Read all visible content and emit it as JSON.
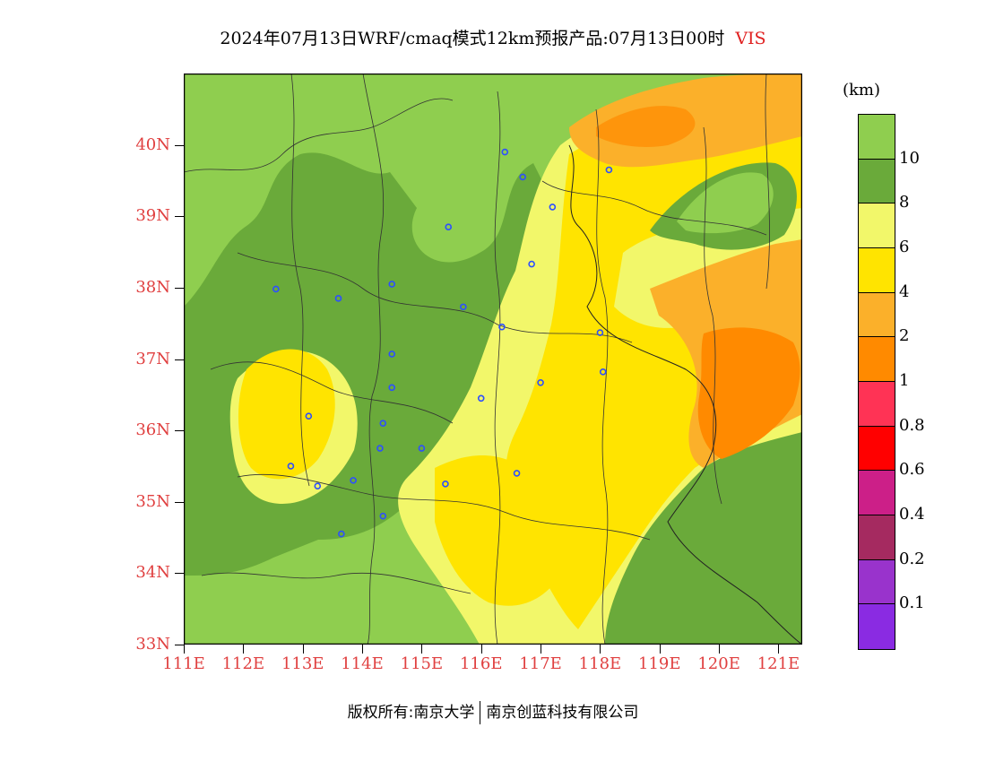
{
  "title": {
    "text": "2024年07月13日WRF/cmaq模式12km预报产品:07月13日00时",
    "variable": "VIS"
  },
  "legend": {
    "unit": "(km)",
    "boxes": [
      {
        "color": "#8fce4f"
      },
      {
        "color": "#6aaa3a"
      },
      {
        "color": "#f2f76a"
      },
      {
        "color": "#ffe400"
      },
      {
        "color": "#fbb02a"
      },
      {
        "color": "#ff8a00"
      },
      {
        "color": "#ff3355"
      },
      {
        "color": "#ff0000"
      },
      {
        "color": "#cc1f88"
      },
      {
        "color": "#a52a60"
      },
      {
        "color": "#9933cc"
      },
      {
        "color": "#8a2be2"
      }
    ],
    "labels": [
      "10",
      "8",
      "6",
      "4",
      "2",
      "1",
      "0.8",
      "0.6",
      "0.4",
      "0.2",
      "0.1"
    ]
  },
  "axes": {
    "lat_labels": [
      "40N",
      "39N",
      "38N",
      "37N",
      "36N",
      "35N",
      "34N",
      "33N"
    ],
    "lon_labels": [
      "111E",
      "112E",
      "113E",
      "114E",
      "115E",
      "116E",
      "117E",
      "118E",
      "119E",
      "120E",
      "121E"
    ],
    "lat_range": [
      33,
      41
    ],
    "lon_range": [
      111,
      121.4
    ]
  },
  "colors": {
    "green": "#8fce4f",
    "dark_green": "#6aaa3a",
    "light_yellow": "#f2f76a",
    "yellow": "#ffe400",
    "light_orange": "#fbb02a",
    "orange": "#ff8a00",
    "station": "#2d4fff"
  },
  "stations": [
    {
      "lon": 116.4,
      "lat": 39.9
    },
    {
      "lon": 116.7,
      "lat": 39.55
    },
    {
      "lon": 118.15,
      "lat": 39.65
    },
    {
      "lon": 117.2,
      "lat": 39.13
    },
    {
      "lon": 115.45,
      "lat": 38.85
    },
    {
      "lon": 116.85,
      "lat": 38.33
    },
    {
      "lon": 112.55,
      "lat": 37.98
    },
    {
      "lon": 113.6,
      "lat": 37.85
    },
    {
      "lon": 114.5,
      "lat": 38.05
    },
    {
      "lon": 115.7,
      "lat": 37.73
    },
    {
      "lon": 116.35,
      "lat": 37.45
    },
    {
      "lon": 118.0,
      "lat": 37.37
    },
    {
      "lon": 114.5,
      "lat": 37.07
    },
    {
      "lon": 117.0,
      "lat": 36.67
    },
    {
      "lon": 118.05,
      "lat": 36.82
    },
    {
      "lon": 114.5,
      "lat": 36.6
    },
    {
      "lon": 116.0,
      "lat": 36.45
    },
    {
      "lon": 113.1,
      "lat": 36.2
    },
    {
      "lon": 114.35,
      "lat": 36.1
    },
    {
      "lon": 114.3,
      "lat": 35.75
    },
    {
      "lon": 115.0,
      "lat": 35.75
    },
    {
      "lon": 112.8,
      "lat": 35.5
    },
    {
      "lon": 113.25,
      "lat": 35.22
    },
    {
      "lon": 113.85,
      "lat": 35.3
    },
    {
      "lon": 115.4,
      "lat": 35.25
    },
    {
      "lon": 116.6,
      "lat": 35.4
    },
    {
      "lon": 114.35,
      "lat": 34.8
    },
    {
      "lon": 113.65,
      "lat": 34.55
    }
  ],
  "copyright": {
    "prefix": "版权所有:",
    "org1": "南京大学",
    "org2": "南京创蓝科技有限公司"
  }
}
